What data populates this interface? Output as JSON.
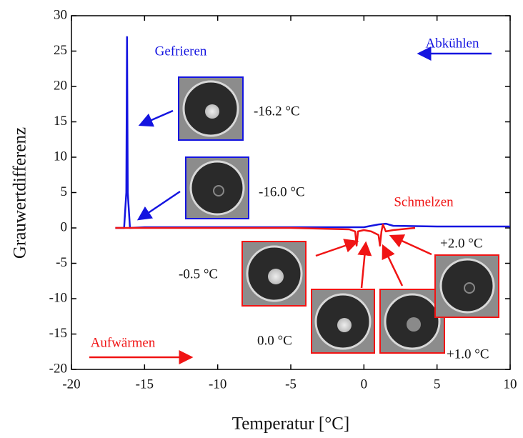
{
  "chart_data": {
    "type": "line",
    "x_label": "Temperatur [°C]",
    "y_label": "Grauwertdifferenz",
    "xlim": [
      -20,
      10
    ],
    "xticks": [
      -20,
      -15,
      -10,
      -5,
      0,
      5,
      10
    ],
    "ylim": [
      -20,
      30
    ],
    "yticks": [
      -20,
      -15,
      -10,
      -5,
      0,
      5,
      10,
      15,
      20,
      25,
      30
    ],
    "series": [
      {
        "name": "Abkühlen",
        "color": "#1414e0",
        "x": [
          -17,
          -16.4,
          -16.25,
          -16.2,
          -16.15,
          -16.0,
          -15,
          -10,
          -5,
          0,
          0.5,
          1.0,
          1.5,
          2.0,
          5,
          10
        ],
        "values": [
          0,
          0,
          5,
          27,
          5,
          0,
          0.1,
          0.1,
          0.1,
          0.1,
          0.3,
          0.5,
          0.6,
          0.3,
          0.2,
          0.2
        ]
      },
      {
        "name": "Aufwärmen",
        "color": "#f01414",
        "x": [
          -17,
          -10,
          -5,
          -1,
          -0.6,
          -0.5,
          -0.4,
          0,
          0.5,
          1.0,
          1.1,
          1.2,
          1.3,
          1.5,
          2,
          3,
          3.5
        ],
        "values": [
          0,
          0,
          0,
          -0.2,
          -0.5,
          -2.5,
          -0.5,
          -0.3,
          -0.5,
          -1.0,
          -2.5,
          -0.5,
          0.5,
          -0.5,
          -0.3,
          -0.1,
          0
        ]
      }
    ],
    "annotations": [
      "Gefrieren",
      "Schmelzen",
      "-16.2 °C",
      "-16.0 °C",
      "-0.5 °C",
      "0.0 °C",
      "+1.0 °C",
      "+2.0 °C"
    ]
  }
}
